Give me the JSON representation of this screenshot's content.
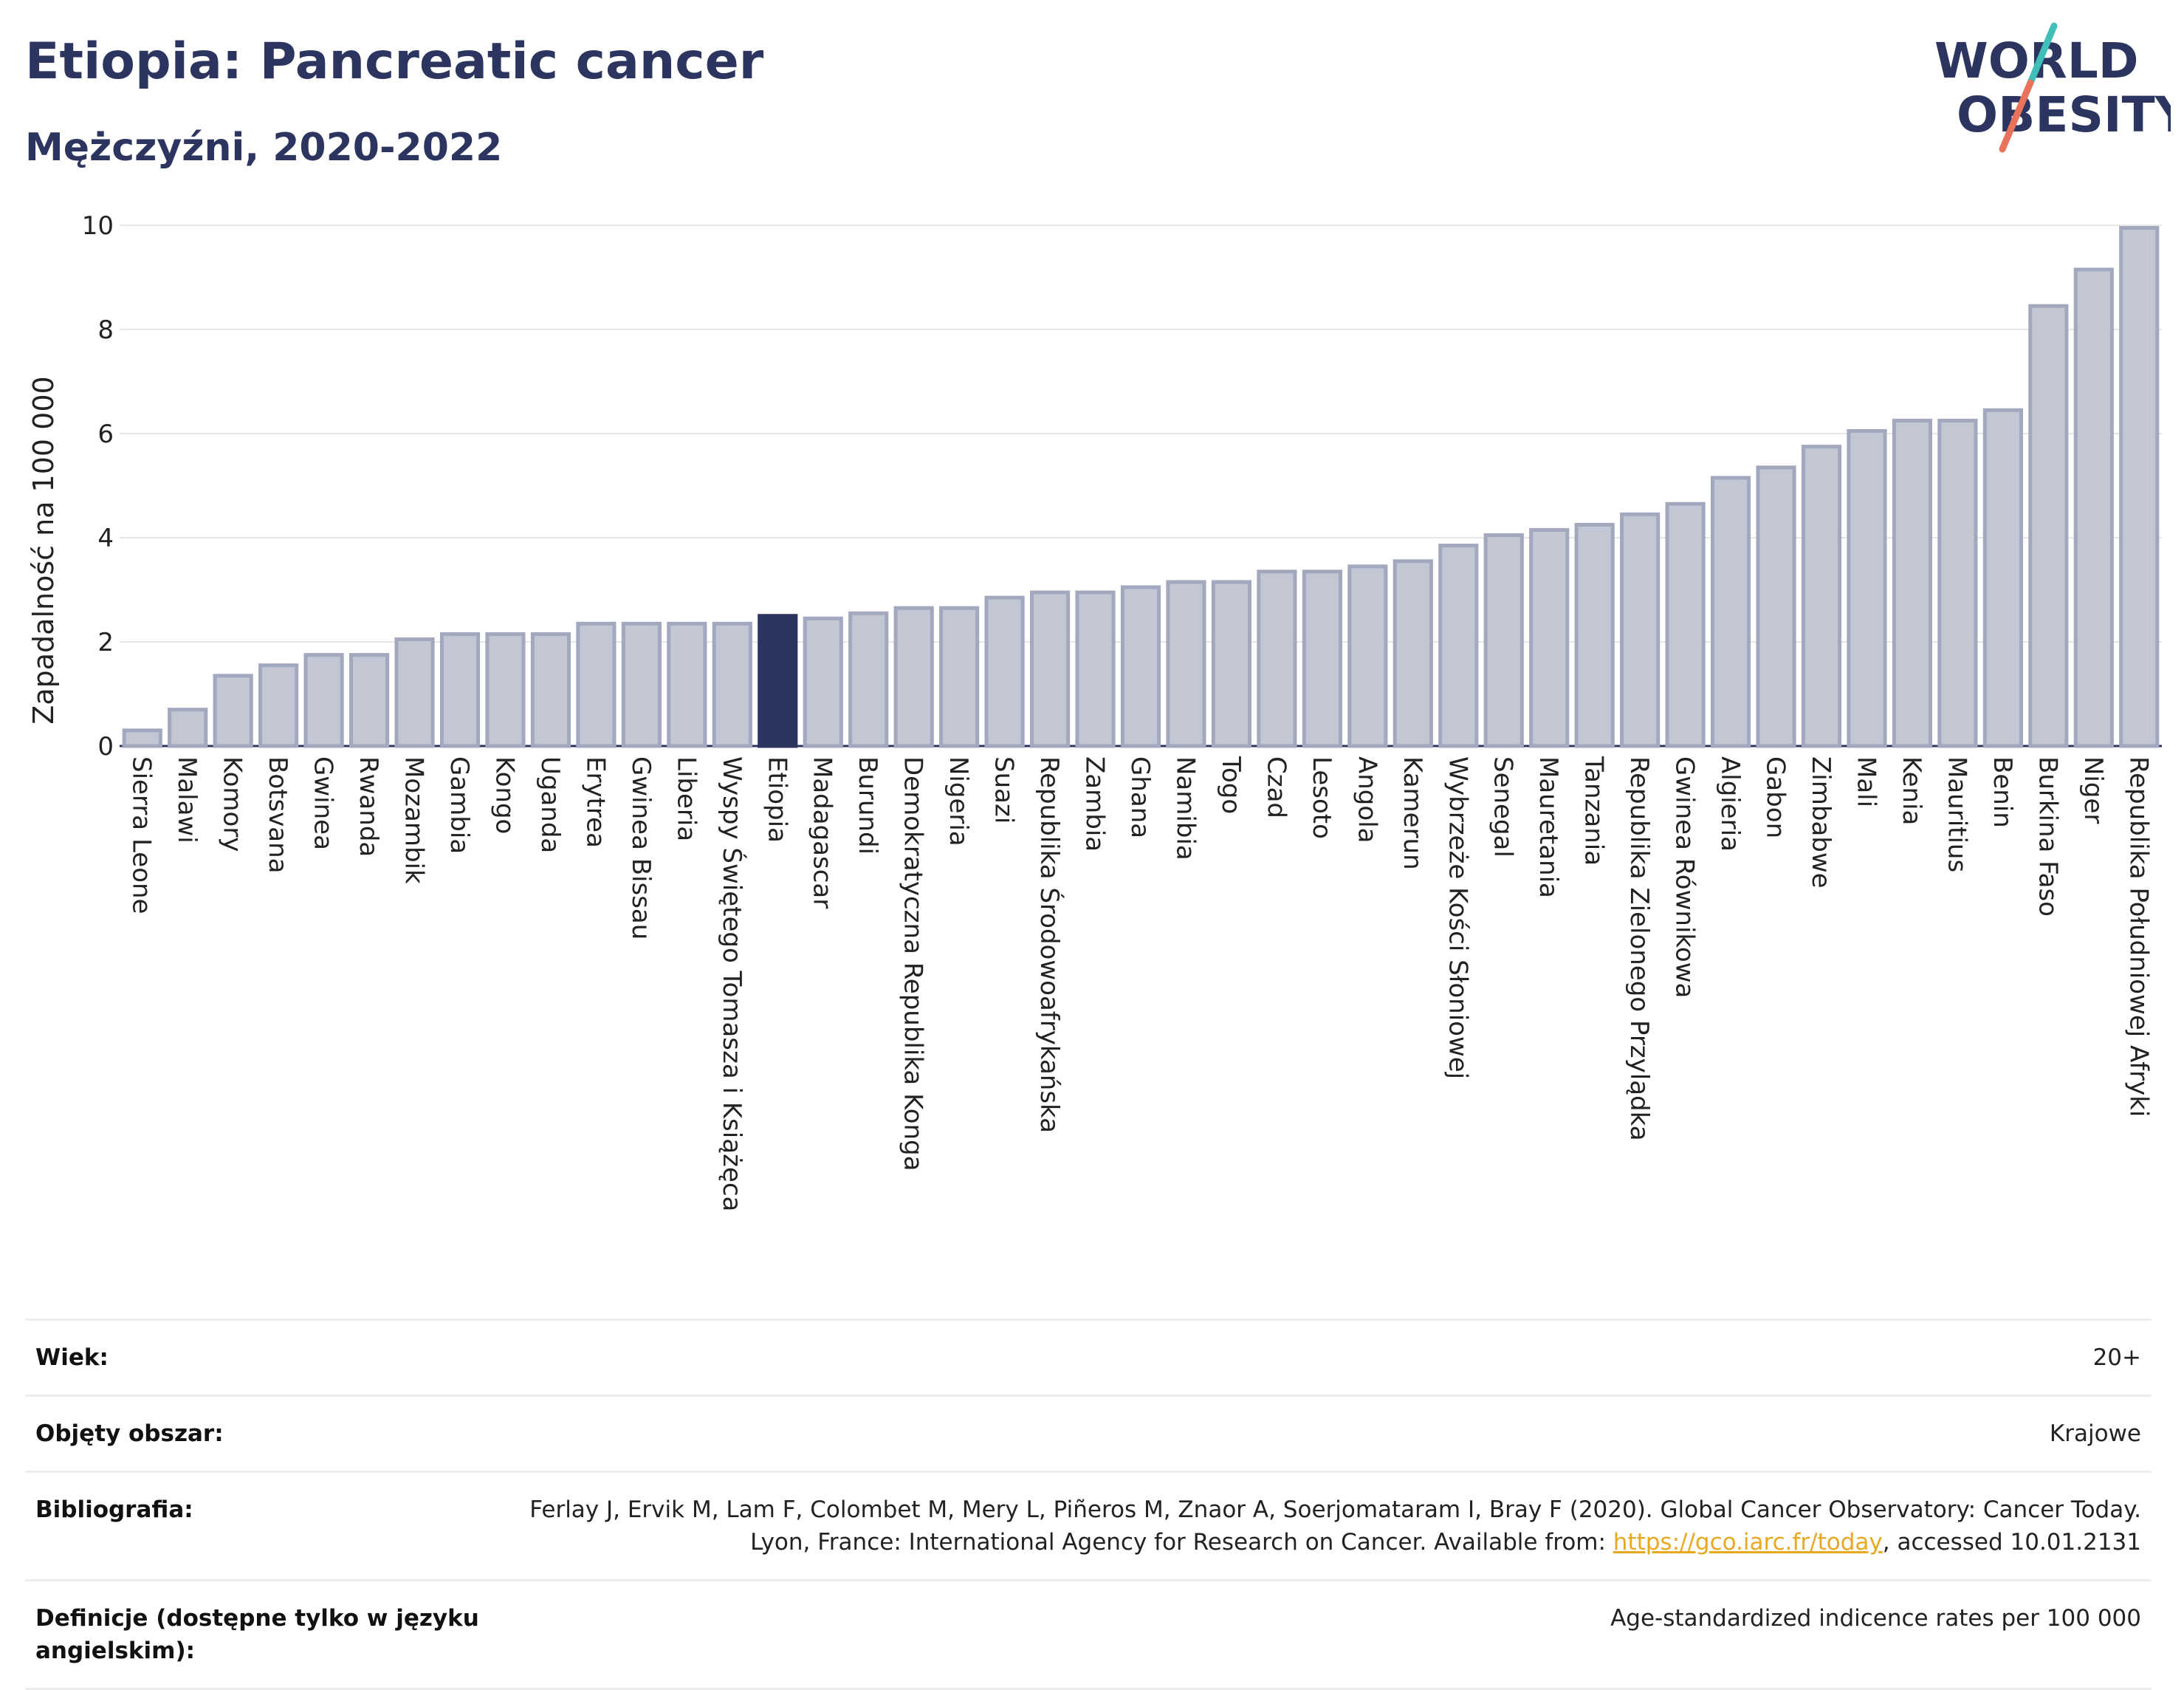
{
  "header": {
    "title": "Etiopia: Pancreatic cancer",
    "subtitle": "Mężczyźni, 2020-2022"
  },
  "logo": {
    "line1": "WORLD",
    "line2": "OBESITY",
    "slash_colors": [
      "#3fbfb8",
      "#e8735a"
    ]
  },
  "colors": {
    "bar_fill": "#c3c7d4",
    "bar_stroke": "#a2a8bd",
    "highlight": "#2c3560",
    "grid": "#e6e6e6"
  },
  "chart_data": {
    "type": "bar",
    "title": "Etiopia: Pancreatic cancer",
    "subtitle": "Mężczyźni, 2020-2022",
    "ylabel": "Zapadalność na 100 000",
    "xlabel": "",
    "ylim": [
      0,
      10
    ],
    "yticks": [
      0,
      2,
      4,
      6,
      8,
      10
    ],
    "grid": true,
    "highlight_category": "Etiopia",
    "categories": [
      "Sierra Leone",
      "Malawi",
      "Komory",
      "Botsvana",
      "Gwinea",
      "Rwanda",
      "Mozambik",
      "Gambia",
      "Kongo",
      "Uganda",
      "Erytrea",
      "Gwinea Bissau",
      "Liberia",
      "Wyspy Świętego Tomasza i Książęca",
      "Etiopia",
      "Madagascar",
      "Burundi",
      "Demokratyczna Republika Konga",
      "Nigeria",
      "Suazi",
      "Republika Środowoafrykańska",
      "Zambia",
      "Ghana",
      "Namibia",
      "Togo",
      "Czad",
      "Lesoto",
      "Angola",
      "Kamerun",
      "Wybrzeże Kości Słoniowej",
      "Senegal",
      "Mauretania",
      "Tanzania",
      "Republika Zielonego Przylądka",
      "Gwinea Równikowa",
      "Algieria",
      "Gabon",
      "Zimbabwe",
      "Mali",
      "Kenia",
      "Mauritius",
      "Benin",
      "Burkina Faso",
      "Niger",
      "Republika Południowej Afryki"
    ],
    "values": [
      0.3,
      0.7,
      1.35,
      1.55,
      1.75,
      1.75,
      2.05,
      2.15,
      2.15,
      2.15,
      2.35,
      2.35,
      2.35,
      2.35,
      2.5,
      2.45,
      2.55,
      2.65,
      2.65,
      2.85,
      2.95,
      2.95,
      3.05,
      3.15,
      3.15,
      3.35,
      3.35,
      3.45,
      3.55,
      3.85,
      4.05,
      4.15,
      4.25,
      4.45,
      4.65,
      5.15,
      5.35,
      5.75,
      6.05,
      6.25,
      6.25,
      6.45,
      8.45,
      9.15,
      9.95
    ]
  },
  "meta": {
    "age_label": "Wiek:",
    "age_value": "20+",
    "area_label": "Objęty obszar:",
    "area_value": "Krajowe",
    "bib_label": "Bibliografia:",
    "bib_text_1": "Ferlay J, Ervik M, Lam F, Colombet M, Mery L, Piñeros M, Znaor A, Soerjomataram I, Bray F (2020). Global Cancer Observatory: Cancer Today. Lyon, France: International Agency for Research on Cancer. Available from: ",
    "bib_link": "https://gco.iarc.fr/today",
    "bib_text_2": ", accessed 10.01.2131",
    "def_label": "Definicje (dostępne tylko w języku angielskim):",
    "def_value": "Age-standardized indicence rates per 100 000"
  }
}
